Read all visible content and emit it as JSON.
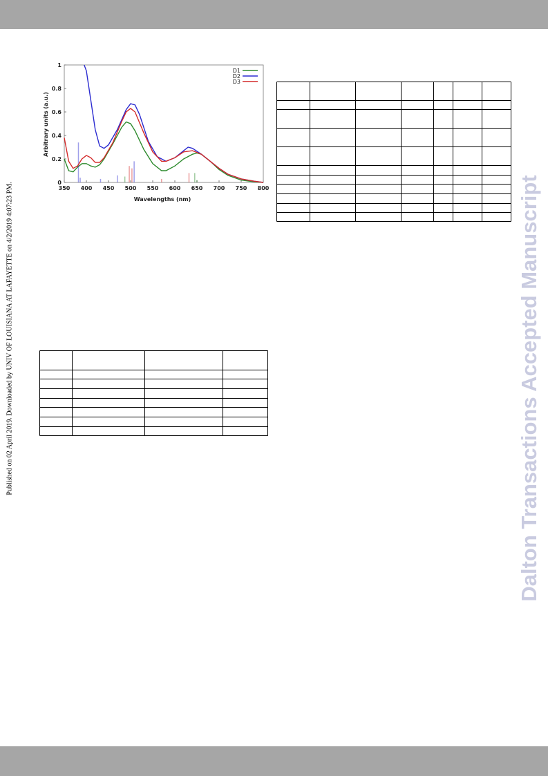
{
  "side_note": "Published on 02 April 2019. Downloaded by UNIV OF LOUISIANA AT LAFAYETTE on 4/2/2019 4:07:23 PM.",
  "watermark": "Dalton Transactions Accepted Manuscript",
  "chart_data": {
    "type": "line",
    "x_label": "Wavelengths (nm)",
    "y_label": "Arbitrary units (a.u.)",
    "xlim": [
      350,
      800
    ],
    "ylim": [
      0,
      1
    ],
    "xticks": [
      350,
      400,
      450,
      500,
      550,
      600,
      650,
      700,
      750,
      800
    ],
    "yticks": [
      0,
      0.2,
      0.4,
      0.6,
      0.8,
      1
    ],
    "legend": "upper right",
    "series": [
      {
        "name": "D1",
        "color": "#2e8b2e",
        "x": [
          350,
          360,
          370,
          380,
          390,
          400,
          410,
          420,
          430,
          440,
          460,
          480,
          490,
          500,
          510,
          530,
          550,
          570,
          580,
          600,
          620,
          640,
          650,
          660,
          680,
          700,
          720,
          750,
          780,
          800
        ],
        "values": [
          0.2,
          0.1,
          0.09,
          0.13,
          0.16,
          0.16,
          0.14,
          0.13,
          0.15,
          0.2,
          0.33,
          0.47,
          0.515,
          0.5,
          0.44,
          0.28,
          0.16,
          0.1,
          0.1,
          0.14,
          0.2,
          0.24,
          0.25,
          0.24,
          0.18,
          0.11,
          0.06,
          0.02,
          0.005,
          0
        ],
        "sticks": {
          "x": [
            487,
            645,
            650
          ],
          "values": [
            0.05,
            0.08,
            0.02
          ]
        }
      },
      {
        "name": "D2",
        "color": "#2b2bd0",
        "x": [
          395,
          400,
          410,
          420,
          430,
          440,
          450,
          470,
          490,
          500,
          510,
          520,
          540,
          560,
          580,
          600,
          620,
          630,
          640,
          660,
          680,
          700,
          720,
          750,
          780,
          800
        ],
        "values": [
          1,
          0.95,
          0.7,
          0.45,
          0.31,
          0.29,
          0.32,
          0.45,
          0.62,
          0.67,
          0.66,
          0.58,
          0.35,
          0.22,
          0.18,
          0.21,
          0.27,
          0.3,
          0.29,
          0.24,
          0.18,
          0.12,
          0.07,
          0.03,
          0.01,
          0
        ],
        "sticks": {
          "x": [
            382,
            386,
            508,
            432,
            470
          ],
          "values": [
            0.34,
            0.04,
            0.18,
            0.03,
            0.06
          ]
        }
      },
      {
        "name": "D3",
        "color": "#d42a2a",
        "x": [
          350,
          360,
          370,
          380,
          390,
          400,
          410,
          420,
          430,
          440,
          460,
          480,
          490,
          500,
          510,
          530,
          550,
          570,
          580,
          600,
          620,
          640,
          660,
          680,
          700,
          720,
          750,
          780,
          800
        ],
        "values": [
          0.38,
          0.18,
          0.12,
          0.14,
          0.2,
          0.23,
          0.21,
          0.17,
          0.17,
          0.21,
          0.34,
          0.52,
          0.6,
          0.63,
          0.6,
          0.42,
          0.26,
          0.18,
          0.18,
          0.21,
          0.26,
          0.27,
          0.24,
          0.18,
          0.12,
          0.07,
          0.03,
          0.01,
          0
        ],
        "sticks": {
          "x": [
            497,
            503,
            570,
            632
          ],
          "values": [
            0.14,
            0.12,
            0.03,
            0.08
          ]
        }
      }
    ]
  }
}
